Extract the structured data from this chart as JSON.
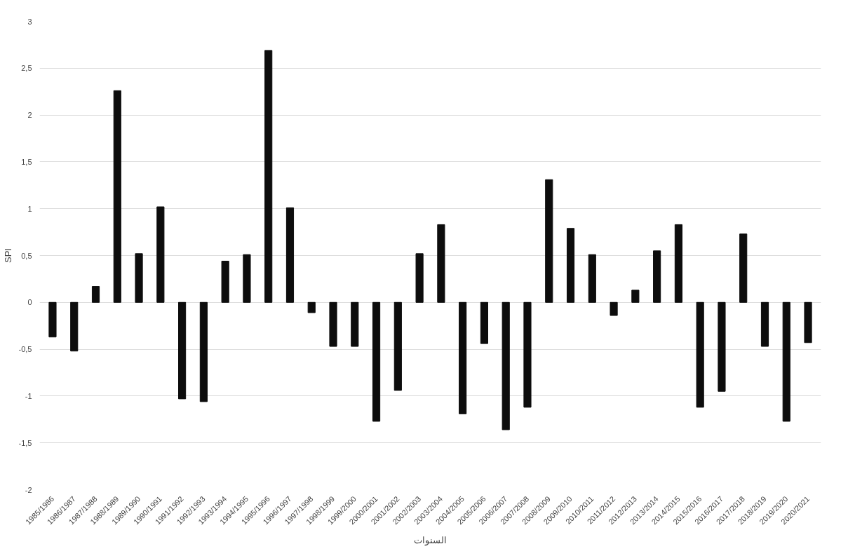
{
  "chart_data": {
    "type": "bar",
    "xlabel": "السنوات",
    "ylabel": "SPI",
    "categories": [
      "1985/1986",
      "1986/1987",
      "1987/1988",
      "1988/1989",
      "1989/1990",
      "1990/1991",
      "1991/1992",
      "1992/1993",
      "1993/1994",
      "1994/1995",
      "1995/1996",
      "1996/1997",
      "1997/1998",
      "1998/1999",
      "1999/2000",
      "2000/2001",
      "2001/2002",
      "2002/2003",
      "2003/2004",
      "2004/2005",
      "2005/2006",
      "2006/2007",
      "2007/2008",
      "2008/2009",
      "2009/2010",
      "2010/2011",
      "2011/2012",
      "2012/2013",
      "2013/2014",
      "2014/2015",
      "2015/2016",
      "2016/2017",
      "2017/2018",
      "2018/2019",
      "2019/2020",
      "2020/2021"
    ],
    "series": [
      {
        "color": "#0d0d0d",
        "values": [
          -0.37,
          -0.52,
          0.17,
          2.26,
          0.52,
          1.02,
          -1.03,
          -1.06,
          0.44,
          0.51,
          2.69,
          1.01,
          -0.11,
          -0.47,
          -0.47,
          -1.27,
          -0.94,
          0.52,
          0.83,
          -1.19,
          -0.44,
          -1.36,
          -1.12,
          1.31,
          0.79,
          0.51,
          -0.14,
          0.13,
          0.55,
          0.83,
          -1.12,
          -0.95,
          0.73,
          -0.47,
          -1.27,
          -0.43
        ]
      }
    ],
    "ylim": [
      -2,
      3
    ],
    "yticks": [
      -2,
      {
        "value": -1.5,
        "label": "-1,5"
      },
      -1,
      {
        "value": -0.5,
        "label": "-0,5"
      },
      0,
      {
        "value": 0.5,
        "label": "0,5"
      },
      1,
      {
        "value": 1.5,
        "label": "1,5"
      },
      2,
      {
        "value": 2.5,
        "label": "2,5"
      },
      3
    ],
    "grid": "y"
  }
}
